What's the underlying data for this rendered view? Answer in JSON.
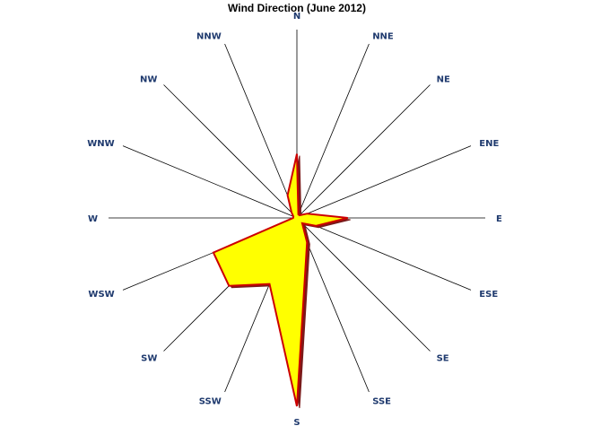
{
  "chart_data": {
    "type": "radar",
    "title": "Wind Direction (June 2012)",
    "directions": [
      "N",
      "NNE",
      "NE",
      "ENE",
      "E",
      "ESE",
      "SE",
      "SSE",
      "S",
      "SSW",
      "SW",
      "WSW",
      "W",
      "WNW",
      "NW",
      "NNW"
    ],
    "values": [
      0.34,
      0.02,
      0.02,
      0.06,
      0.27,
      0.11,
      0.04,
      0.14,
      1.0,
      0.38,
      0.51,
      0.48,
      0.02,
      0.02,
      0.04,
      0.13
    ],
    "fill_color": "#FFFF00",
    "line_color": "#CC0000",
    "shadow_color": "#7A1A1A",
    "label_color": "#1F3A6E",
    "grid": false,
    "legend": "none"
  }
}
